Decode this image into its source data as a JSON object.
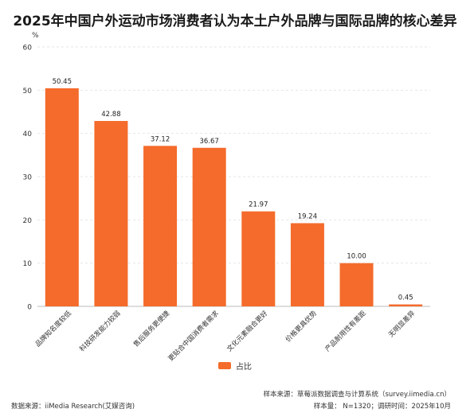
{
  "colors": {
    "bar": "#F46B2B",
    "grid": "#e6e6e6",
    "axis": "#333333"
  },
  "legend_icon": "bar-swatch",
  "chart_data": {
    "type": "bar",
    "title": "2025年中国户外运动市场消费者认为本土户外品牌与国际品牌的核心差异",
    "ylabel": "%",
    "xlabel": "",
    "ylim": [
      0,
      60
    ],
    "yticks": [
      0,
      10,
      20,
      30,
      40,
      50,
      60
    ],
    "grid": true,
    "legend_position": "bottom",
    "categories": [
      "品牌知名度较低",
      "科技研发能力较弱",
      "售后服务更便捷",
      "更贴合中国消费者需求",
      "文化元素融合更好",
      "价格更具优势",
      "产品耐用性有差距",
      "无明显差异"
    ],
    "series": [
      {
        "name": "占比",
        "values": [
          50.45,
          42.88,
          37.12,
          36.67,
          21.97,
          19.24,
          10.0,
          0.45
        ]
      }
    ],
    "data_labels": [
      "50.45",
      "42.88",
      "37.12",
      "36.67",
      "21.97",
      "19.24",
      "10.00",
      "0.45"
    ]
  },
  "footer": {
    "source": "数据来源：iiMedia Research(艾媒咨询)",
    "sample_source": "样本来源：草莓派数据调查与计算系统（survey.iimedia.cn）",
    "sample_info": "样本量： N=1320；调研时间：2025年10月"
  }
}
